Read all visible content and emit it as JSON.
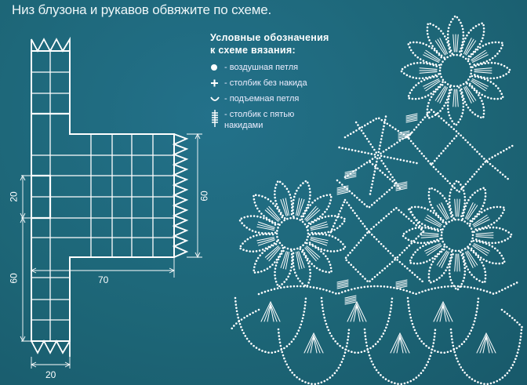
{
  "instruction": "Низ блузона и рукавов обвяжите по схеме.",
  "legend": {
    "title_line1": "Условные обозначения",
    "title_line2": "к схеме вязания:",
    "items": [
      {
        "icon": "filled-dot-icon",
        "label": "- воздушная петля"
      },
      {
        "icon": "plus-icon",
        "label": "- столбик без накида"
      },
      {
        "icon": "arc-icon",
        "label": "- подъемная петля"
      },
      {
        "icon": "five-crossbar-stitch-icon",
        "label": "- столбик с пятью",
        "label2": "накидами"
      }
    ]
  },
  "pattern": {
    "dim_right": "60",
    "dim_left_upper": "20",
    "dim_left_lower": "60",
    "dim_width": "70",
    "dim_bottom": "20"
  },
  "colors": {
    "background": "#1d6677",
    "lines": "#ffffff"
  }
}
